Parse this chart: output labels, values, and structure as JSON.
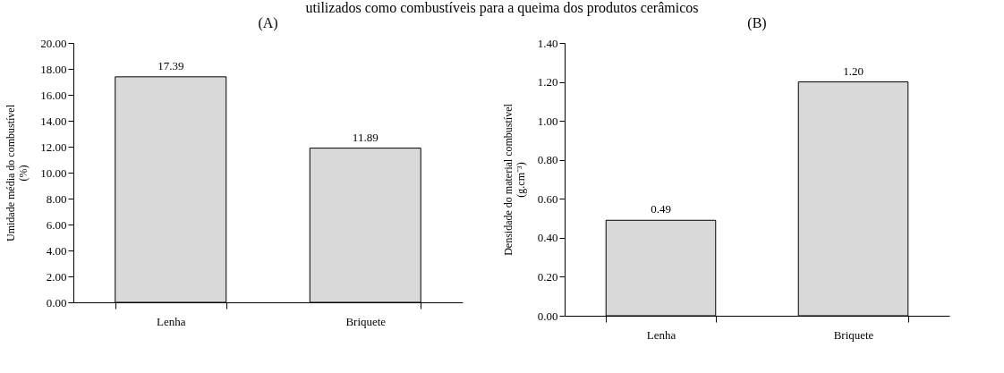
{
  "chart_data": [
    {
      "type": "bar",
      "title": "(A)",
      "annotations": [
        "utilizados como combustíveis para a queima dos produtos cerâmicos"
      ],
      "ylabel": "Umidade média do combustível (%)",
      "categories": [
        "Lenha",
        "Briquete"
      ],
      "values": [
        17.39,
        11.89
      ],
      "value_labels": [
        "17.39",
        "11.89"
      ],
      "color": "#d9d9d9",
      "ylim": [
        0,
        20
      ],
      "yticks": [
        {
          "value": 0,
          "label": "0.00"
        },
        {
          "value": 2,
          "label": "2.00"
        },
        {
          "value": 4,
          "label": "4.00"
        },
        {
          "value": 6,
          "label": "6.00"
        },
        {
          "value": 8,
          "label": "8.00"
        },
        {
          "value": 10,
          "label": "10.00"
        },
        {
          "value": 12,
          "label": "12.00"
        },
        {
          "value": 14,
          "label": "14.00"
        },
        {
          "value": 16,
          "label": "16.00"
        },
        {
          "value": 18,
          "label": "18.00"
        },
        {
          "value": 20,
          "label": "20.00"
        }
      ],
      "grid": false
    },
    {
      "type": "bar",
      "title": "(B)",
      "ylabel": "Densidade do material combustível (g.cm⁻³)",
      "categories": [
        "Lenha",
        "Briquete"
      ],
      "values": [
        0.49,
        1.2
      ],
      "value_labels": [
        "0.49",
        "1.20"
      ],
      "color": "#d9d9d9",
      "ylim": [
        0,
        1.4
      ],
      "yticks": [
        {
          "value": 0,
          "label": "0.00"
        },
        {
          "value": 0.2,
          "label": "0.20"
        },
        {
          "value": 0.4,
          "label": "0.40"
        },
        {
          "value": 0.6,
          "label": "0.60"
        },
        {
          "value": 0.8,
          "label": "0.80"
        },
        {
          "value": 1.0,
          "label": "1.00"
        },
        {
          "value": 1.2,
          "label": "1.20"
        },
        {
          "value": 1.4,
          "label": "1.40"
        }
      ],
      "grid": false
    }
  ]
}
